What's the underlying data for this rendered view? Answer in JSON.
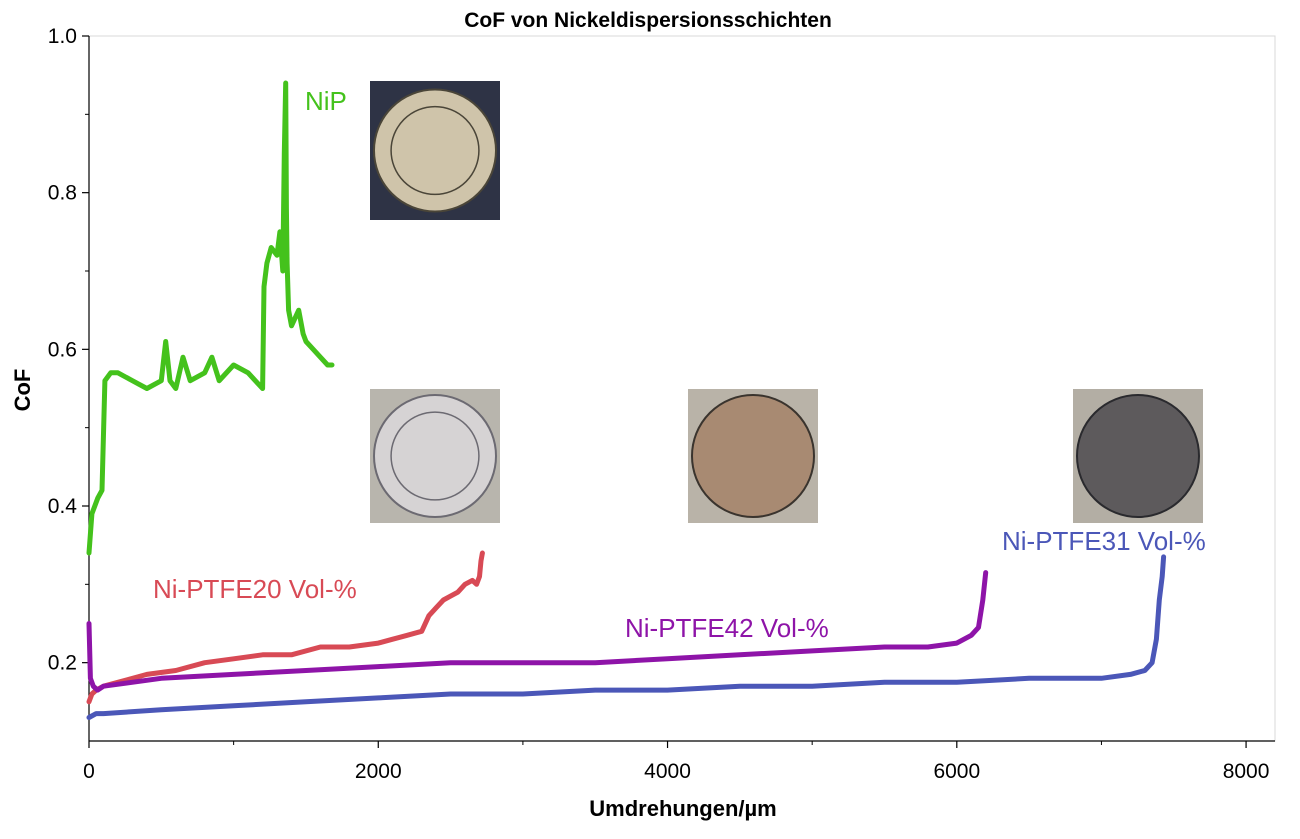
{
  "chart_data": {
    "type": "line",
    "title": "CoF von Nickeldispersionsschichten",
    "xlabel": "Umdrehungen/µm",
    "ylabel": "CoF",
    "xlim": [
      0,
      8200
    ],
    "ylim": [
      0.1,
      1.0
    ],
    "x_ticks": [
      0,
      2000,
      4000,
      6000,
      8000
    ],
    "x_tick_labels": [
      "0",
      "2000",
      "4000",
      "6000",
      "8000"
    ],
    "y_ticks": [
      0.2,
      0.4,
      0.6,
      0.8,
      1.0
    ],
    "y_tick_labels": [
      "0.2",
      "0.4",
      "0.6",
      "0.8",
      "1.0"
    ],
    "grid": false,
    "series": [
      {
        "name": "NiP",
        "color": "#44c21c",
        "x": [
          0,
          20,
          60,
          90,
          110,
          150,
          200,
          300,
          400,
          500,
          530,
          560,
          600,
          650,
          700,
          800,
          850,
          900,
          1000,
          1100,
          1150,
          1200,
          1210,
          1230,
          1260,
          1300,
          1320,
          1340,
          1350,
          1360,
          1365,
          1370,
          1380,
          1400,
          1450,
          1480,
          1500,
          1550,
          1600,
          1650,
          1680
        ],
        "y": [
          0.34,
          0.39,
          0.41,
          0.42,
          0.56,
          0.57,
          0.57,
          0.56,
          0.55,
          0.56,
          0.61,
          0.56,
          0.55,
          0.59,
          0.56,
          0.57,
          0.59,
          0.56,
          0.58,
          0.57,
          0.56,
          0.55,
          0.68,
          0.71,
          0.73,
          0.72,
          0.75,
          0.7,
          0.85,
          0.94,
          0.78,
          0.71,
          0.65,
          0.63,
          0.65,
          0.62,
          0.61,
          0.6,
          0.59,
          0.58,
          0.58
        ]
      },
      {
        "name": "Ni-PTFE20 Vol-%",
        "color": "#d84a55",
        "x": [
          0,
          20,
          50,
          100,
          200,
          400,
          600,
          800,
          1000,
          1200,
          1400,
          1600,
          1800,
          2000,
          2100,
          2200,
          2300,
          2350,
          2400,
          2450,
          2500,
          2550,
          2600,
          2650,
          2680,
          2700,
          2710,
          2720
        ],
        "y": [
          0.15,
          0.16,
          0.165,
          0.17,
          0.175,
          0.185,
          0.19,
          0.2,
          0.205,
          0.21,
          0.21,
          0.22,
          0.22,
          0.225,
          0.23,
          0.235,
          0.24,
          0.26,
          0.27,
          0.28,
          0.285,
          0.29,
          0.3,
          0.305,
          0.3,
          0.31,
          0.33,
          0.34
        ]
      },
      {
        "name": "Ni-PTFE42 Vol-%",
        "color": "#8e14a8",
        "x": [
          0,
          10,
          30,
          60,
          100,
          500,
          1000,
          1500,
          2000,
          2500,
          3000,
          3500,
          4000,
          4500,
          5000,
          5500,
          5800,
          6000,
          6100,
          6150,
          6180,
          6200
        ],
        "y": [
          0.25,
          0.18,
          0.17,
          0.165,
          0.17,
          0.18,
          0.185,
          0.19,
          0.195,
          0.2,
          0.2,
          0.2,
          0.205,
          0.21,
          0.215,
          0.22,
          0.22,
          0.225,
          0.235,
          0.245,
          0.28,
          0.315
        ]
      },
      {
        "name": "Ni-PTFE31 Vol-%",
        "color": "#4b57b8",
        "x": [
          0,
          50,
          100,
          500,
          1000,
          1500,
          2000,
          2500,
          3000,
          3500,
          4000,
          4500,
          5000,
          5500,
          6000,
          6500,
          7000,
          7200,
          7300,
          7350,
          7380,
          7400,
          7420,
          7430
        ],
        "y": [
          0.13,
          0.135,
          0.135,
          0.14,
          0.145,
          0.15,
          0.155,
          0.16,
          0.16,
          0.165,
          0.165,
          0.17,
          0.17,
          0.175,
          0.175,
          0.18,
          0.18,
          0.185,
          0.19,
          0.2,
          0.23,
          0.28,
          0.31,
          0.335
        ]
      }
    ]
  },
  "images": [
    {
      "name": "NiP sample photo",
      "color_outer": "#2e3345",
      "color_disc": "#cfc4aa",
      "color_ring": "#4a4538"
    },
    {
      "name": "Ni-PTFE20 sample photo",
      "color_outer": "#b8b5ad",
      "color_disc": "#d6d3d4",
      "color_ring": "#6c6a72"
    },
    {
      "name": "Ni-PTFE42 sample photo",
      "color_outer": "#b9b3a8",
      "color_disc": "#a88a72",
      "color_ring": "#3a342e"
    },
    {
      "name": "Ni-PTFE31 sample photo",
      "color_outer": "#b3aea4",
      "color_disc": "#5d5a5c",
      "color_ring": "#2a2a2e"
    }
  ]
}
